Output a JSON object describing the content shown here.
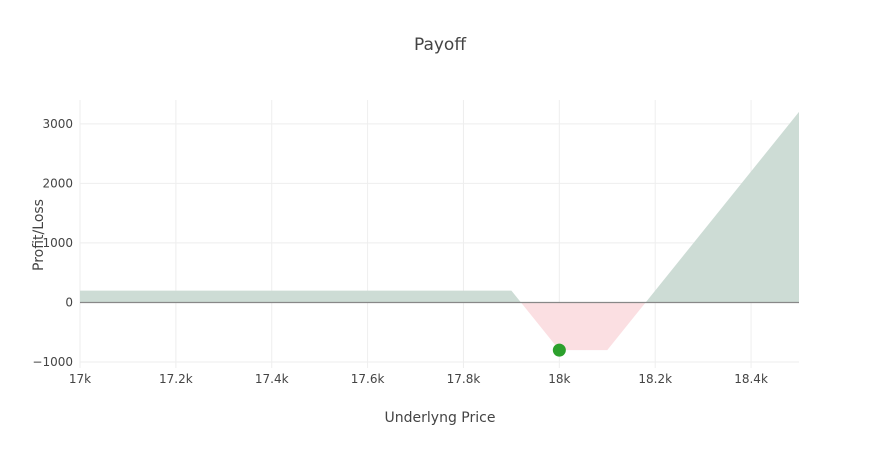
{
  "chart_data": {
    "type": "area",
    "title": "Payoff",
    "xlabel": "Underlyng Price",
    "ylabel": "Profit/Loss",
    "xlim": [
      17000,
      18500
    ],
    "ylim": [
      -1100,
      3400
    ],
    "x_ticks": [
      17000,
      17200,
      17400,
      17600,
      17800,
      18000,
      18200,
      18400
    ],
    "x_tick_labels": [
      "17k",
      "17.2k",
      "17.4k",
      "17.6k",
      "17.8k",
      "18k",
      "18.2k",
      "18.4k"
    ],
    "y_ticks": [
      -1000,
      0,
      1000,
      2000,
      3000
    ],
    "y_tick_labels": [
      "−1000",
      "0",
      "1000",
      "2000",
      "3000"
    ],
    "grid": true,
    "series": [
      {
        "fill_color": "#cddcd5",
        "x": [
          17000,
          17900,
          17920,
          18180,
          18500
        ],
        "y": [
          200,
          200,
          0,
          0,
          3200
        ]
      },
      {
        "fill_color": "#fbdfe2",
        "x": [
          17920,
          18000,
          18100,
          18180
        ],
        "y": [
          0,
          -800,
          -800,
          0
        ]
      }
    ],
    "marker": {
      "x": 18000,
      "y": -800,
      "color": "#2ca02c"
    },
    "zero_line_color": "#888888"
  }
}
